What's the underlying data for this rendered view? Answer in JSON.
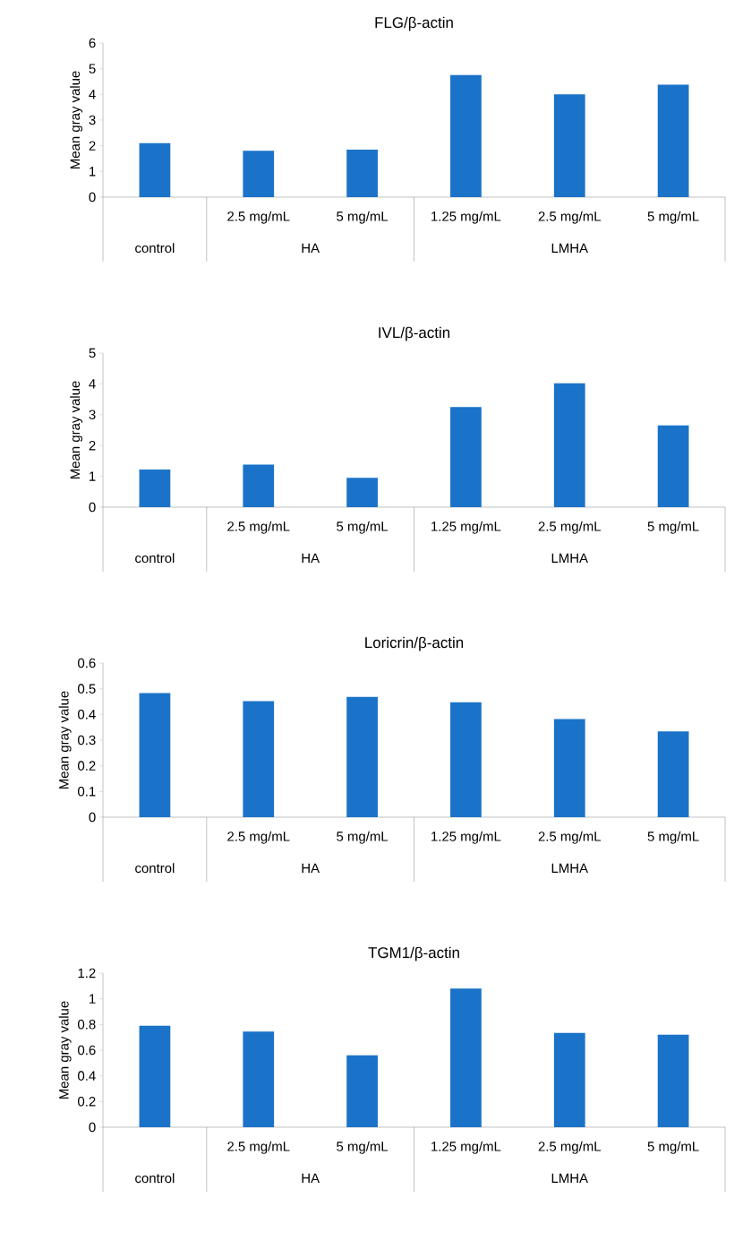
{
  "chart_data": [
    {
      "type": "bar",
      "title": "FLG/β-actin",
      "ylabel": "Mean gray value",
      "categories": [
        null,
        "2.5 mg/mL",
        "5 mg/mL",
        "1.25 mg/mL",
        "2.5 mg/mL",
        "5 mg/mL"
      ],
      "values": [
        2.1,
        1.8,
        1.85,
        4.75,
        4.0,
        4.38
      ],
      "color": "#1a73c8",
      "ylim": [
        0,
        6
      ],
      "yticks": [
        0,
        1,
        2,
        3,
        4,
        5,
        6
      ],
      "annotations": [
        "control",
        "HA",
        "LMHA"
      ]
    },
    {
      "type": "bar",
      "title": "IVL/β-actin",
      "ylabel": "Mean gray value",
      "categories": [
        null,
        "2.5 mg/mL",
        "5 mg/mL",
        "1.25 mg/mL",
        "2.5 mg/mL",
        "5 mg/mL"
      ],
      "values": [
        1.22,
        1.38,
        0.95,
        3.25,
        4.02,
        2.65
      ],
      "color": "#1a73c8",
      "ylim": [
        0,
        5
      ],
      "yticks": [
        0,
        1,
        2,
        3,
        4,
        5
      ],
      "annotations": [
        "control",
        "HA",
        "LMHA"
      ]
    },
    {
      "type": "bar",
      "title": "Loricrin/β-actin",
      "ylabel": "Mean gray value",
      "categories": [
        null,
        "2.5 mg/mL",
        "5 mg/mL",
        "1.25 mg/mL",
        "2.5 mg/mL",
        "5 mg/mL"
      ],
      "values": [
        0.483,
        0.452,
        0.468,
        0.447,
        0.382,
        0.334
      ],
      "color": "#1a73c8",
      "ylim": [
        0,
        0.6
      ],
      "yticks": [
        0,
        0.1,
        0.2,
        0.3,
        0.4,
        0.5,
        0.6
      ],
      "annotations": [
        "control",
        "HA",
        "LMHA"
      ]
    },
    {
      "type": "bar",
      "title": "TGM1/β-actin",
      "ylabel": "Mean gray value",
      "categories": [
        null,
        "2.5 mg/mL",
        "5 mg/mL",
        "1.25 mg/mL",
        "2.5 mg/mL",
        "5 mg/mL"
      ],
      "values": [
        0.79,
        0.745,
        0.56,
        1.08,
        0.735,
        0.72
      ],
      "color": "#1a73c8",
      "ylim": [
        0,
        1.2
      ],
      "yticks": [
        0,
        0.2,
        0.4,
        0.6,
        0.8,
        1,
        1.2
      ],
      "annotations": [
        "control",
        "HA",
        "LMHA"
      ]
    }
  ]
}
